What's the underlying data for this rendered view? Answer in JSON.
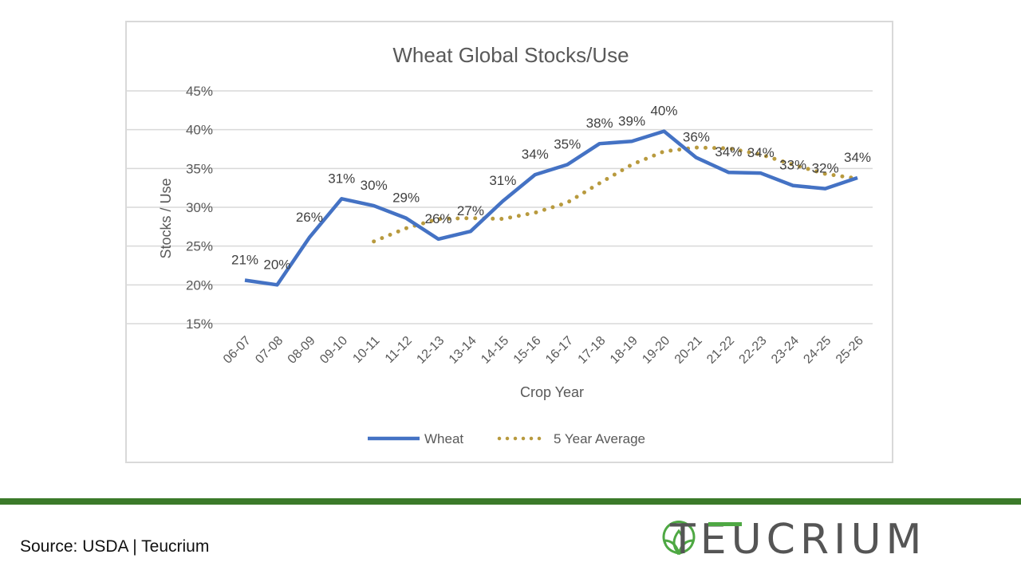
{
  "chart_data": {
    "type": "line",
    "title": "Wheat Global Stocks/Use",
    "xlabel": "Crop Year",
    "ylabel": "Stocks / Use",
    "ylim": [
      15,
      45
    ],
    "yticks": [
      "15%",
      "20%",
      "25%",
      "30%",
      "35%",
      "40%",
      "45%"
    ],
    "ytick_values": [
      15,
      20,
      25,
      30,
      35,
      40,
      45
    ],
    "grid": true,
    "legend_position": "bottom",
    "categories": [
      "06-07",
      "07-08",
      "08-09",
      "09-10",
      "10-11",
      "11-12",
      "12-13",
      "13-14",
      "14-15",
      "15-16",
      "16-17",
      "17-18",
      "18-19",
      "19-20",
      "20-21",
      "21-22",
      "22-23",
      "23-24",
      "24-25",
      "25-26"
    ],
    "series": [
      {
        "name": "Wheat",
        "color": "#4472c4",
        "style": "solid",
        "values": [
          20.6,
          20.0,
          26.1,
          31.1,
          30.2,
          28.6,
          25.9,
          26.9,
          30.8,
          34.2,
          35.5,
          38.2,
          38.5,
          39.8,
          36.4,
          34.5,
          34.4,
          32.8,
          32.4,
          33.8
        ],
        "labels": [
          "21%",
          "20%",
          "26%",
          "31%",
          "30%",
          "29%",
          "26%",
          "27%",
          "31%",
          "34%",
          "35%",
          "38%",
          "39%",
          "40%",
          "36%",
          "34%",
          "34%",
          "33%",
          "32%",
          "34%"
        ]
      },
      {
        "name": "5 Year Average",
        "color": "#b89a3e",
        "style": "dotted",
        "values": [
          null,
          null,
          null,
          null,
          25.6,
          27.3,
          28.5,
          28.6,
          28.5,
          29.3,
          30.6,
          33.1,
          35.5,
          37.2,
          37.7,
          37.6,
          36.8,
          35.5,
          34.3,
          33.7
        ]
      }
    ]
  },
  "footer": {
    "source": "Source: USDA | Teucrium",
    "logo_text": "TEUCRIUM"
  }
}
